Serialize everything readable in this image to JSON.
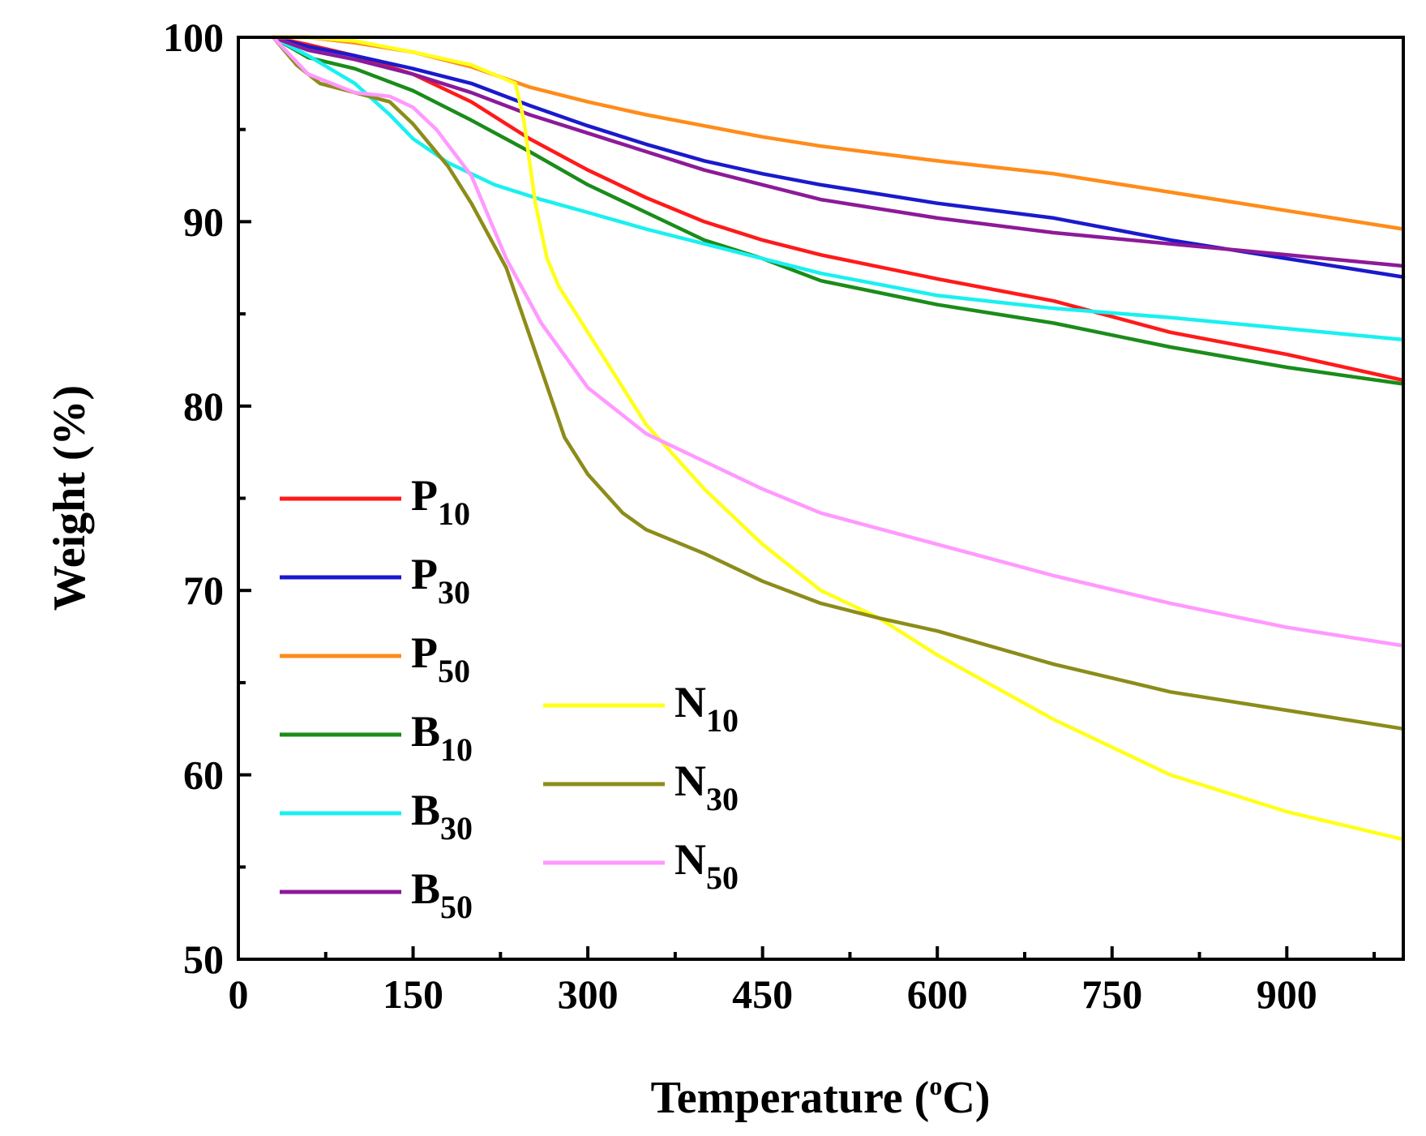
{
  "chart_data": {
    "type": "line",
    "title": "",
    "xlabel": "Temperature (",
    "xlabel_deg": "o",
    "xlabel_unit": "C)",
    "ylabel": "Weight (%)",
    "xlim": [
      0,
      1000
    ],
    "ylim": [
      50,
      100
    ],
    "xticks": [
      0,
      150,
      300,
      450,
      600,
      750,
      900
    ],
    "yticks": [
      50,
      60,
      70,
      80,
      90,
      100
    ],
    "grid": false,
    "series": [
      {
        "name": "P",
        "sub": "10",
        "color": "#ff1a1a",
        "x": [
          30,
          60,
          100,
          150,
          200,
          250,
          300,
          350,
          400,
          450,
          500,
          600,
          700,
          800,
          900,
          1000
        ],
        "y": [
          100,
          99.6,
          99.0,
          98.0,
          96.5,
          94.5,
          92.8,
          91.3,
          90.0,
          89.0,
          88.2,
          86.9,
          85.7,
          84.0,
          82.8,
          81.4
        ]
      },
      {
        "name": "P",
        "sub": "30",
        "color": "#1a1acc",
        "x": [
          30,
          60,
          100,
          150,
          200,
          250,
          300,
          350,
          400,
          450,
          500,
          600,
          700,
          800,
          900,
          1000
        ],
        "y": [
          100,
          99.5,
          99.0,
          98.3,
          97.5,
          96.3,
          95.2,
          94.2,
          93.3,
          92.6,
          92.0,
          91.0,
          90.2,
          89.0,
          88.0,
          87.0
        ]
      },
      {
        "name": "P",
        "sub": "50",
        "color": "#ff8c1a",
        "x": [
          30,
          60,
          100,
          150,
          200,
          250,
          300,
          350,
          400,
          450,
          500,
          600,
          700,
          800,
          900,
          1000
        ],
        "y": [
          100,
          100,
          99.7,
          99.2,
          98.4,
          97.3,
          96.5,
          95.8,
          95.2,
          94.6,
          94.1,
          93.3,
          92.6,
          91.6,
          90.6,
          89.6
        ]
      },
      {
        "name": "B",
        "sub": "10",
        "color": "#1a8c1a",
        "x": [
          30,
          60,
          100,
          150,
          200,
          250,
          300,
          350,
          400,
          450,
          500,
          600,
          700,
          800,
          900,
          1000
        ],
        "y": [
          100,
          98.9,
          98.3,
          97.1,
          95.5,
          93.8,
          92.0,
          90.5,
          89.0,
          88.0,
          86.8,
          85.5,
          84.5,
          83.2,
          82.1,
          81.2
        ]
      },
      {
        "name": "B",
        "sub": "30",
        "color": "#1af0f0",
        "x": [
          30,
          60,
          100,
          130,
          150,
          180,
          220,
          260,
          300,
          350,
          400,
          450,
          500,
          600,
          700,
          800,
          900,
          1000
        ],
        "y": [
          100,
          99.0,
          97.5,
          95.8,
          94.5,
          93.2,
          92.0,
          91.2,
          90.5,
          89.6,
          88.8,
          88.0,
          87.2,
          86.0,
          85.3,
          84.8,
          84.2,
          83.6
        ]
      },
      {
        "name": "B",
        "sub": "50",
        "color": "#8c1a99",
        "x": [
          30,
          60,
          100,
          150,
          200,
          250,
          300,
          350,
          400,
          450,
          500,
          600,
          700,
          800,
          900,
          1000
        ],
        "y": [
          100,
          99.3,
          98.8,
          98.0,
          97.0,
          95.8,
          94.8,
          93.8,
          92.8,
          92.0,
          91.2,
          90.2,
          89.4,
          88.8,
          88.2,
          87.6
        ]
      },
      {
        "name": "N",
        "sub": "10",
        "color": "#ffff1a",
        "x": [
          30,
          60,
          100,
          150,
          200,
          238,
          245,
          255,
          265,
          275,
          300,
          350,
          400,
          450,
          500,
          550,
          600,
          700,
          800,
          900,
          1000
        ],
        "y": [
          100,
          100,
          99.8,
          99.2,
          98.5,
          97.5,
          95.5,
          91.0,
          88.0,
          86.5,
          84.0,
          79.0,
          75.5,
          72.5,
          70.0,
          68.5,
          66.5,
          63.0,
          60.0,
          58.0,
          56.5
        ]
      },
      {
        "name": "N",
        "sub": "30",
        "color": "#8c8c1a",
        "x": [
          30,
          50,
          70,
          100,
          130,
          150,
          180,
          200,
          230,
          260,
          280,
          300,
          330,
          350,
          400,
          450,
          500,
          550,
          600,
          700,
          800,
          900,
          1000
        ],
        "y": [
          100,
          98.5,
          97.5,
          97.0,
          96.5,
          95.3,
          93.0,
          91.0,
          87.5,
          82.0,
          78.3,
          76.3,
          74.2,
          73.3,
          72.0,
          70.5,
          69.3,
          68.5,
          67.8,
          66.0,
          64.5,
          63.5,
          62.5
        ]
      },
      {
        "name": "N",
        "sub": "50",
        "color": "#ff99ff",
        "x": [
          30,
          60,
          100,
          130,
          150,
          170,
          200,
          230,
          260,
          300,
          350,
          400,
          450,
          500,
          600,
          700,
          800,
          900,
          1000
        ],
        "y": [
          100,
          98.0,
          97.0,
          96.8,
          96.2,
          95.0,
          92.5,
          88.0,
          84.5,
          81.0,
          78.5,
          77.0,
          75.5,
          74.2,
          72.5,
          70.8,
          69.3,
          68.0,
          67.0
        ]
      }
    ],
    "legend": {
      "columns": [
        [
          "P10",
          "P30",
          "P50",
          "B10",
          "B30",
          "B50"
        ],
        [
          "N10",
          "N30",
          "N50"
        ]
      ],
      "placement": "lower-left"
    }
  }
}
